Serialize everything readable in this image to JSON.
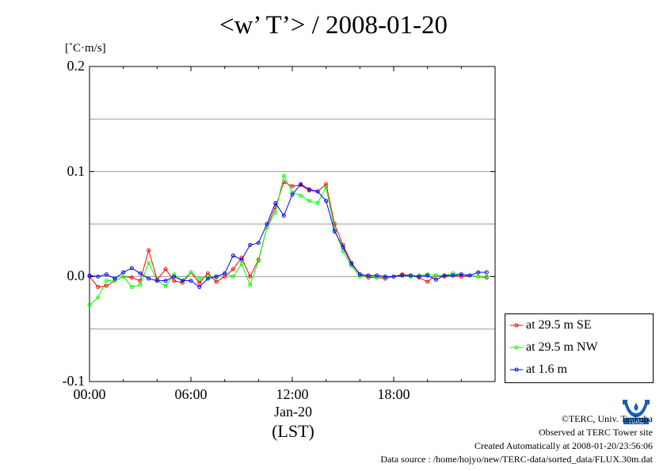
{
  "title": "<w’ T’> / 2008-01-20",
  "unit_label": "[˚C·m/s]",
  "x_date_label": "Jan-20",
  "x_axis_label": "(LST)",
  "credits": {
    "line1": "©TERC, Univ. Tsukuba",
    "line2": "Observed at TERC Tower site",
    "line3": "Created Automatically at 2008-01-20/23:56:06",
    "line4": "Data source : /home/hojyo/new/TERC-data/sorted_data/FLUX.30m.dat"
  },
  "logo_text": "TERC",
  "colors": {
    "se": "#ff0000",
    "nw": "#00ff00",
    "low": "#0000ff",
    "grid": "#999999"
  },
  "chart_data": {
    "type": "line",
    "title": "<w’ T’> / 2008-01-20",
    "ylabel": "[˚C·m/s]",
    "xlabel": "(LST)",
    "xlim": [
      0,
      24
    ],
    "ylim": [
      -0.1,
      0.2
    ],
    "y_ticks": [
      -0.1,
      0.0,
      0.1,
      0.2
    ],
    "y_tick_labels": [
      "-0.1",
      "0.0",
      "0.1",
      "0.2"
    ],
    "x_ticks": [
      0,
      6,
      12,
      18
    ],
    "x_tick_labels": [
      "00:00",
      "06:00",
      "12:00",
      "18:00"
    ],
    "grid": true,
    "legend_position": "outside-right-bottom",
    "x": [
      0.0,
      0.5,
      1.0,
      1.5,
      2.0,
      2.5,
      3.0,
      3.5,
      4.0,
      4.5,
      5.0,
      5.5,
      6.0,
      6.5,
      7.0,
      7.5,
      8.0,
      8.5,
      9.0,
      9.5,
      10.0,
      10.5,
      11.0,
      11.5,
      12.0,
      12.5,
      13.0,
      13.5,
      14.0,
      14.5,
      15.0,
      15.5,
      16.0,
      16.5,
      17.0,
      17.5,
      18.0,
      18.5,
      19.0,
      19.5,
      20.0,
      20.5,
      21.0,
      21.5,
      22.0,
      22.5,
      23.0,
      23.5
    ],
    "series": [
      {
        "name": "at 29.5 m SE",
        "color": "#ff0000",
        "values": [
          0.0,
          -0.01,
          -0.009,
          -0.004,
          0.0,
          -0.001,
          -0.004,
          0.025,
          -0.003,
          0.007,
          -0.004,
          -0.006,
          0.004,
          -0.006,
          0.003,
          -0.005,
          0.0,
          0.007,
          0.018,
          0.0,
          0.016,
          0.047,
          0.066,
          0.09,
          0.086,
          0.087,
          0.082,
          0.081,
          0.088,
          0.05,
          0.03,
          0.013,
          0.002,
          -0.001,
          -0.001,
          -0.002,
          0.0,
          0.002,
          0.001,
          -0.001,
          -0.005,
          0.001,
          0.0,
          0.001,
          0.0,
          0.001,
          0.0,
          -0.001
        ]
      },
      {
        "name": "at 29.5 m NW",
        "color": "#00ff00",
        "values": [
          -0.027,
          -0.02,
          -0.004,
          -0.004,
          0.0,
          -0.01,
          -0.008,
          0.013,
          -0.004,
          -0.009,
          0.002,
          -0.004,
          0.004,
          -0.002,
          0.0,
          -0.001,
          0.003,
          0.0,
          0.012,
          -0.008,
          0.015,
          0.047,
          0.061,
          0.096,
          0.08,
          0.077,
          0.072,
          0.07,
          0.085,
          0.045,
          0.024,
          0.01,
          0.0,
          0.001,
          -0.001,
          -0.001,
          0.0,
          0.001,
          0.0,
          0.001,
          0.002,
          0.001,
          0.001,
          0.003,
          0.002,
          0.001,
          0.0,
          0.0
        ]
      },
      {
        "name": "at 1.6 m",
        "color": "#0000ff",
        "values": [
          0.001,
          0.0,
          0.002,
          -0.002,
          0.004,
          0.008,
          0.003,
          -0.002,
          -0.004,
          -0.004,
          0.0,
          -0.004,
          -0.004,
          -0.01,
          -0.002,
          0.0,
          0.003,
          0.02,
          0.016,
          0.03,
          0.032,
          0.05,
          0.07,
          0.058,
          0.078,
          0.088,
          0.083,
          0.081,
          0.072,
          0.043,
          0.028,
          0.012,
          0.002,
          0.001,
          0.001,
          0.0,
          0.0,
          0.001,
          0.001,
          0.0,
          0.001,
          -0.003,
          0.001,
          0.001,
          0.002,
          0.001,
          0.004,
          0.004
        ]
      }
    ]
  }
}
